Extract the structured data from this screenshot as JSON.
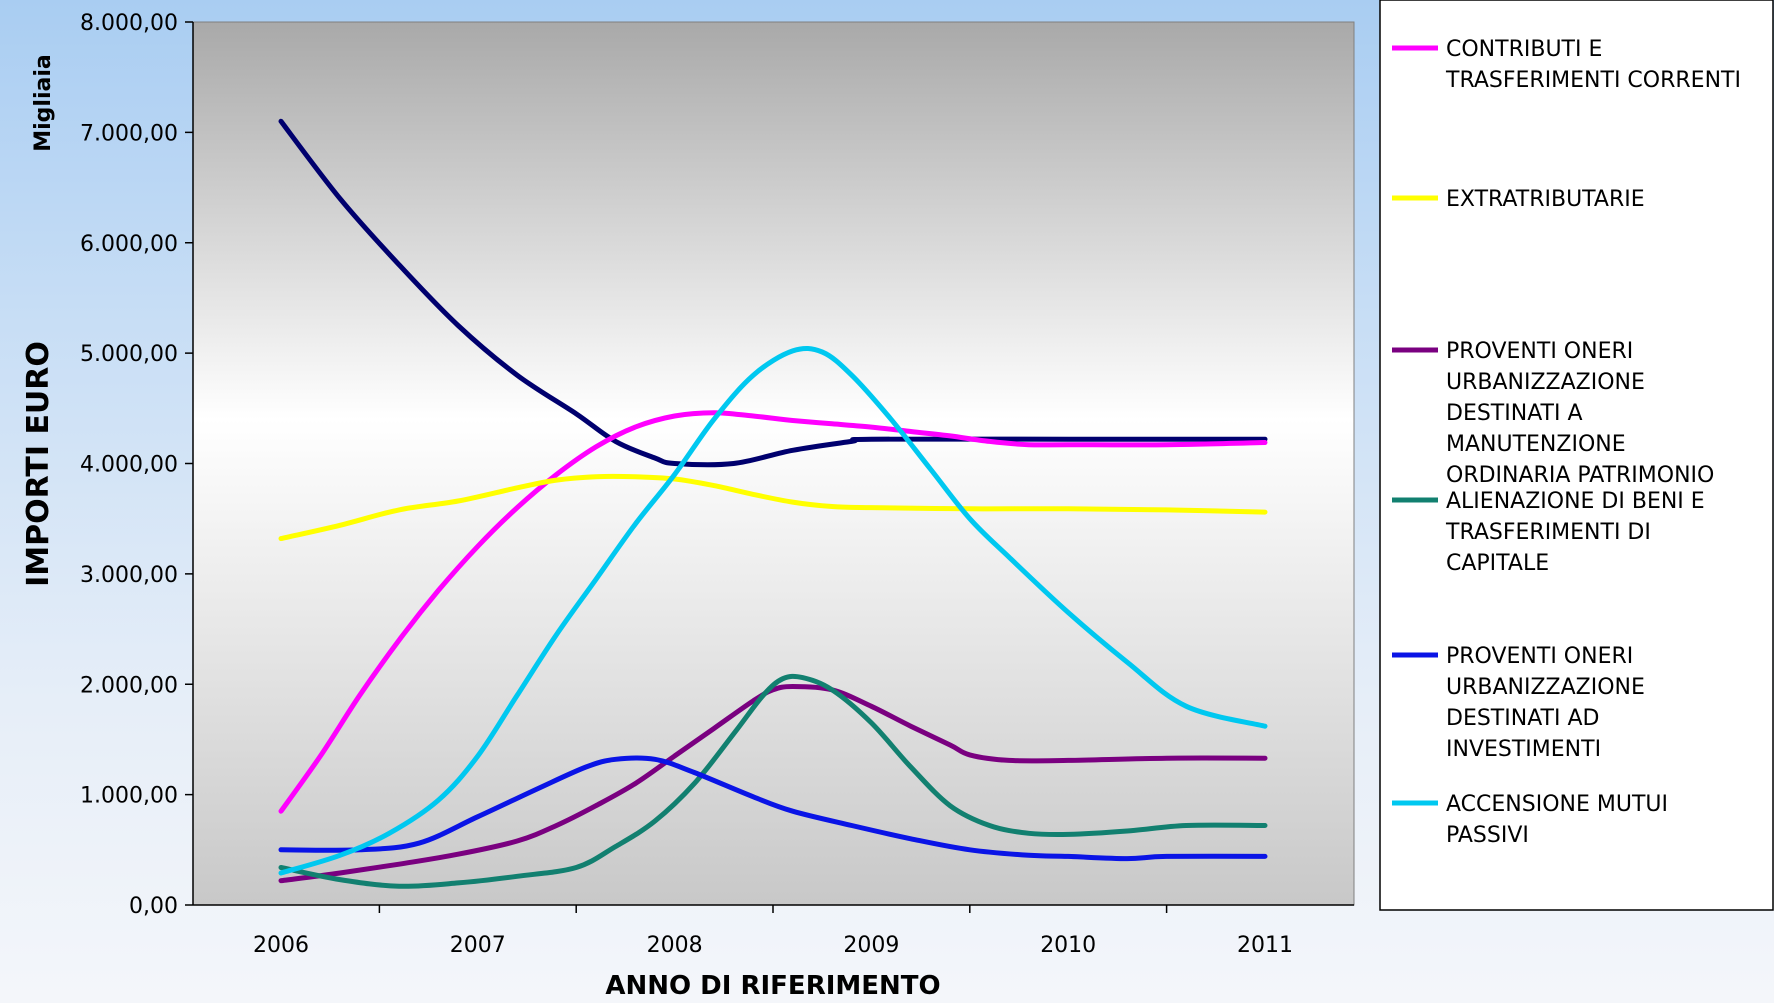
{
  "chart_data": {
    "type": "line",
    "title": "",
    "xlabel": "ANNO DI RIFERIMENTO",
    "ylabel": "IMPORTI EURO",
    "yunit": "Migliaia",
    "ylim": [
      0,
      8000
    ],
    "ytick_values": [
      0,
      1000,
      2000,
      3000,
      4000,
      5000,
      6000,
      7000,
      8000
    ],
    "ytick_labels": [
      "0,00",
      "1.000,00",
      "2.000,00",
      "3.000,00",
      "4.000,00",
      "5.000,00",
      "6.000,00",
      "7.000,00",
      "8.000,00"
    ],
    "x_categories": [
      "2006",
      "2007",
      "2008",
      "2009",
      "2010",
      "2011"
    ],
    "grid": false,
    "legend_position": "right",
    "series": [
      {
        "name": "",
        "color": "#00006e",
        "points": [
          [
            2006,
            7100
          ],
          [
            2006.3,
            6400
          ],
          [
            2006.6,
            5800
          ],
          [
            2006.9,
            5250
          ],
          [
            2007.2,
            4800
          ],
          [
            2007.5,
            4450
          ],
          [
            2007.7,
            4200
          ],
          [
            2007.9,
            4050
          ],
          [
            2008,
            4000
          ],
          [
            2008.3,
            4000
          ],
          [
            2008.6,
            4120
          ],
          [
            2008.9,
            4200
          ],
          [
            2009,
            4220
          ],
          [
            2010,
            4220
          ],
          [
            2011,
            4220
          ]
        ]
      },
      {
        "name": "CONTRIBUTI E TRASFERIMENTI CORRENTI",
        "color": "#ff00ff",
        "points": [
          [
            2006,
            850
          ],
          [
            2006.2,
            1350
          ],
          [
            2006.4,
            1900
          ],
          [
            2006.6,
            2400
          ],
          [
            2006.8,
            2850
          ],
          [
            2007,
            3250
          ],
          [
            2007.2,
            3600
          ],
          [
            2007.4,
            3900
          ],
          [
            2007.6,
            4150
          ],
          [
            2007.8,
            4330
          ],
          [
            2008,
            4430
          ],
          [
            2008.2,
            4460
          ],
          [
            2008.4,
            4430
          ],
          [
            2008.6,
            4390
          ],
          [
            2008.8,
            4360
          ],
          [
            2009,
            4330
          ],
          [
            2009.2,
            4290
          ],
          [
            2009.4,
            4250
          ],
          [
            2009.6,
            4200
          ],
          [
            2009.8,
            4170
          ],
          [
            2010,
            4170
          ],
          [
            2010.5,
            4170
          ],
          [
            2011,
            4190
          ]
        ]
      },
      {
        "name": "EXTRATRIBUTARIE",
        "color": "#ffff00",
        "points": [
          [
            2006,
            3320
          ],
          [
            2006.3,
            3440
          ],
          [
            2006.6,
            3580
          ],
          [
            2006.9,
            3660
          ],
          [
            2007.2,
            3780
          ],
          [
            2007.4,
            3850
          ],
          [
            2007.6,
            3880
          ],
          [
            2007.8,
            3880
          ],
          [
            2008,
            3860
          ],
          [
            2008.2,
            3800
          ],
          [
            2008.4,
            3720
          ],
          [
            2008.6,
            3650
          ],
          [
            2008.8,
            3610
          ],
          [
            2009,
            3600
          ],
          [
            2009.5,
            3590
          ],
          [
            2010,
            3590
          ],
          [
            2010.5,
            3580
          ],
          [
            2011,
            3560
          ]
        ]
      },
      {
        "name": "PROVENTI ONERI URBANIZZAZIONE DESTINATI A MANUTENZIONE ORDINARIA PATRIMONIO",
        "color": "#7a0080",
        "points": [
          [
            2006,
            220
          ],
          [
            2006.3,
            290
          ],
          [
            2006.6,
            370
          ],
          [
            2006.9,
            460
          ],
          [
            2007.2,
            580
          ],
          [
            2007.4,
            720
          ],
          [
            2007.6,
            900
          ],
          [
            2007.8,
            1100
          ],
          [
            2008,
            1350
          ],
          [
            2008.2,
            1600
          ],
          [
            2008.4,
            1850
          ],
          [
            2008.5,
            1950
          ],
          [
            2008.6,
            1980
          ],
          [
            2008.8,
            1950
          ],
          [
            2009,
            1800
          ],
          [
            2009.2,
            1620
          ],
          [
            2009.4,
            1450
          ],
          [
            2009.5,
            1360
          ],
          [
            2009.7,
            1310
          ],
          [
            2010,
            1310
          ],
          [
            2010.5,
            1330
          ],
          [
            2011,
            1330
          ]
        ]
      },
      {
        "name": "ALIENAZIONE DI BENI E TRASFERIMENTI DI CAPITALE",
        "color": "#128070",
        "points": [
          [
            2006,
            340
          ],
          [
            2006.3,
            230
          ],
          [
            2006.6,
            170
          ],
          [
            2006.9,
            200
          ],
          [
            2007.2,
            260
          ],
          [
            2007.5,
            340
          ],
          [
            2007.7,
            530
          ],
          [
            2007.9,
            760
          ],
          [
            2008.1,
            1100
          ],
          [
            2008.3,
            1550
          ],
          [
            2008.45,
            1900
          ],
          [
            2008.55,
            2050
          ],
          [
            2008.65,
            2060
          ],
          [
            2008.8,
            1950
          ],
          [
            2009,
            1650
          ],
          [
            2009.2,
            1250
          ],
          [
            2009.4,
            900
          ],
          [
            2009.6,
            720
          ],
          [
            2009.8,
            650
          ],
          [
            2010,
            640
          ],
          [
            2010.3,
            670
          ],
          [
            2010.6,
            720
          ],
          [
            2011,
            720
          ]
        ]
      },
      {
        "name": "PROVENTI ONERI URBANIZZAZIONE DESTINATI AD INVESTIMENTI",
        "color": "#0a14e6",
        "points": [
          [
            2006,
            500
          ],
          [
            2006.4,
            500
          ],
          [
            2006.7,
            560
          ],
          [
            2007,
            800
          ],
          [
            2007.3,
            1050
          ],
          [
            2007.55,
            1250
          ],
          [
            2007.7,
            1320
          ],
          [
            2007.9,
            1320
          ],
          [
            2008.1,
            1200
          ],
          [
            2008.4,
            980
          ],
          [
            2008.6,
            850
          ],
          [
            2008.9,
            720
          ],
          [
            2009.2,
            600
          ],
          [
            2009.5,
            500
          ],
          [
            2009.8,
            450
          ],
          [
            2010,
            440
          ],
          [
            2010.3,
            420
          ],
          [
            2010.5,
            440
          ],
          [
            2011,
            440
          ]
        ]
      },
      {
        "name": "ACCENSIONE MUTUI PASSIVI",
        "color": "#00c8f0",
        "points": [
          [
            2006,
            290
          ],
          [
            2006.3,
            450
          ],
          [
            2006.55,
            650
          ],
          [
            2006.8,
            950
          ],
          [
            2007,
            1350
          ],
          [
            2007.2,
            1900
          ],
          [
            2007.4,
            2450
          ],
          [
            2007.6,
            2950
          ],
          [
            2007.8,
            3450
          ],
          [
            2008,
            3900
          ],
          [
            2008.2,
            4400
          ],
          [
            2008.4,
            4800
          ],
          [
            2008.6,
            5020
          ],
          [
            2008.75,
            5010
          ],
          [
            2008.9,
            4800
          ],
          [
            2009.1,
            4400
          ],
          [
            2009.3,
            3950
          ],
          [
            2009.5,
            3500
          ],
          [
            2009.7,
            3150
          ],
          [
            2010,
            2650
          ],
          [
            2010.3,
            2200
          ],
          [
            2010.6,
            1800
          ],
          [
            2011,
            1620
          ]
        ]
      }
    ]
  }
}
